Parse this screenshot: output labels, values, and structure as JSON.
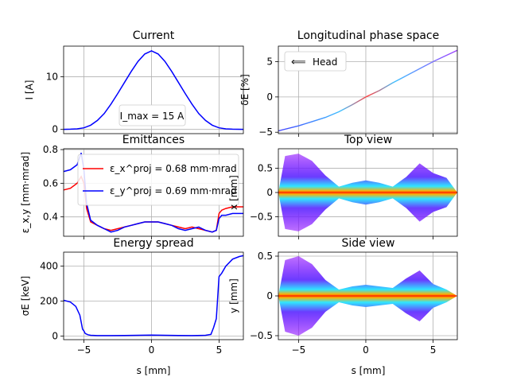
{
  "colors": {
    "current": "#0000ff",
    "ex": "#ff0000",
    "ey": "#0000ff",
    "espread": "#0000ff",
    "grid": "#b0b0b0"
  },
  "chart_data": [
    {
      "id": "current",
      "type": "line",
      "title": "Current",
      "xlabel": "",
      "ylabel": "I [A]",
      "xlim": [
        -6.5,
        6.8
      ],
      "ylim": [
        -0.8,
        15.8
      ],
      "yticks": [
        0,
        10
      ],
      "xticks": [
        -5,
        0,
        5
      ],
      "grid": true,
      "annotation": "I_max = 15 A",
      "series": [
        {
          "x": [
            -6.5,
            -6,
            -5.5,
            -5,
            -4.5,
            -4,
            -3.5,
            -3,
            -2.5,
            -2,
            -1.5,
            -1,
            -0.5,
            0,
            0.5,
            1,
            1.5,
            2,
            2.5,
            3,
            3.5,
            4,
            4.5,
            5,
            5.5,
            6,
            6.8
          ],
          "y": [
            0.02,
            0.05,
            0.1,
            0.3,
            0.8,
            1.7,
            3.0,
            4.8,
            6.8,
            8.9,
            11.0,
            12.9,
            14.3,
            14.9,
            14.3,
            12.9,
            11.0,
            8.9,
            6.8,
            4.8,
            3.0,
            1.7,
            0.8,
            0.3,
            0.1,
            0.05,
            0.02
          ]
        }
      ]
    },
    {
      "id": "lps",
      "type": "scatter",
      "title": "Longitudinal phase space",
      "xlabel": "",
      "ylabel": "δE [%]",
      "xlim": [
        -6.5,
        6.8
      ],
      "ylim": [
        -5.2,
        7.2
      ],
      "yticks": [
        -5,
        0,
        5
      ],
      "xticks": [
        -5,
        0,
        5
      ],
      "grid": true,
      "legend": "Head",
      "series": [
        {
          "x": [
            -6.5,
            -5,
            -4,
            -3,
            -2,
            -1,
            0,
            1,
            2,
            3,
            4,
            5,
            6,
            6.8
          ],
          "y": [
            -4.8,
            -4.1,
            -3.5,
            -2.9,
            -2.1,
            -1.1,
            0,
            0.9,
            2.0,
            3.0,
            4.0,
            5.0,
            5.9,
            6.6
          ]
        }
      ]
    },
    {
      "id": "emittances",
      "type": "line",
      "title": "Emittances",
      "xlabel": "",
      "ylabel": "ε_x,y [mm·mrad]",
      "xlim": [
        -6.5,
        6.8
      ],
      "ylim": [
        0.285,
        0.805
      ],
      "yticks": [
        0.4,
        0.6,
        0.8
      ],
      "xticks": [
        -5,
        0,
        5
      ],
      "grid": true,
      "legend_position": "upper-left",
      "series": [
        {
          "name": "ε_x^proj = 0.68 mm·mrad",
          "x": [
            -6.5,
            -6,
            -5.5,
            -5.2,
            -5,
            -4.8,
            -4.5,
            -4,
            -3.5,
            -3,
            -2.5,
            -2,
            -1.5,
            -1,
            -0.5,
            0,
            0.5,
            1,
            1.5,
            2,
            2.5,
            3,
            3.5,
            4,
            4.5,
            4.8,
            5,
            5.2,
            5.5,
            6,
            6.8
          ],
          "y": [
            0.56,
            0.57,
            0.6,
            0.64,
            0.6,
            0.45,
            0.37,
            0.35,
            0.33,
            0.32,
            0.33,
            0.34,
            0.35,
            0.36,
            0.37,
            0.37,
            0.37,
            0.36,
            0.35,
            0.34,
            0.33,
            0.34,
            0.33,
            0.32,
            0.31,
            0.32,
            0.42,
            0.44,
            0.45,
            0.46,
            0.46
          ]
        },
        {
          "name": "ε_y^proj = 0.69 mm·mrad",
          "x": [
            -6.5,
            -6,
            -5.5,
            -5.2,
            -5,
            -4.8,
            -4.5,
            -4,
            -3.5,
            -3,
            -2.5,
            -2,
            -1.5,
            -1,
            -0.5,
            0,
            0.5,
            1,
            1.5,
            2,
            2.5,
            3,
            3.5,
            4,
            4.5,
            4.8,
            5,
            5.2,
            5.5,
            6,
            6.8
          ],
          "y": [
            0.67,
            0.68,
            0.71,
            0.78,
            0.68,
            0.48,
            0.38,
            0.35,
            0.33,
            0.31,
            0.32,
            0.34,
            0.35,
            0.36,
            0.37,
            0.37,
            0.37,
            0.36,
            0.35,
            0.33,
            0.32,
            0.33,
            0.34,
            0.32,
            0.31,
            0.32,
            0.39,
            0.41,
            0.41,
            0.42,
            0.42
          ]
        }
      ]
    },
    {
      "id": "topview",
      "type": "scatter",
      "title": "Top view",
      "xlabel": "",
      "ylabel": "x [mm]",
      "xlim": [
        -6.5,
        6.8
      ],
      "ylim": [
        -0.9,
        0.9
      ],
      "yticks": [
        -0.5,
        0,
        0.5
      ],
      "xticks": [
        -5,
        0,
        5
      ],
      "grid": true,
      "series": [
        {
          "x": [
            -6,
            -5,
            -4,
            -3,
            -2,
            -1,
            0,
            1,
            2,
            3,
            4,
            5,
            6
          ],
          "y": [
            0.75,
            0.8,
            0.65,
            0.35,
            0.12,
            0.2,
            0.25,
            0.2,
            0.12,
            0.32,
            0.6,
            0.4,
            0.3
          ]
        }
      ]
    },
    {
      "id": "espread",
      "type": "line",
      "title": "Energy spread",
      "xlabel": "s [mm]",
      "ylabel": "σE [keV]",
      "xlim": [
        -6.5,
        6.8
      ],
      "ylim": [
        -20,
        480
      ],
      "yticks": [
        0,
        200,
        400
      ],
      "xticks": [
        -5,
        0,
        5
      ],
      "xticklabels": [
        "−5",
        "0",
        "5"
      ],
      "grid": true,
      "series": [
        {
          "x": [
            -6.5,
            -6,
            -5.6,
            -5.3,
            -5.1,
            -5,
            -4.9,
            -4.7,
            -4.5,
            -4,
            -3,
            -2,
            -1,
            0,
            1,
            2,
            3,
            4,
            4.4,
            4.6,
            4.8,
            5,
            5.2,
            5.5,
            6,
            6.5,
            6.8
          ],
          "y": [
            205,
            195,
            170,
            120,
            40,
            30,
            15,
            8,
            5,
            3,
            3,
            4,
            5,
            6,
            5,
            4,
            3,
            5,
            10,
            50,
            100,
            340,
            360,
            400,
            440,
            455,
            460
          ]
        }
      ]
    },
    {
      "id": "sideview",
      "type": "scatter",
      "title": "Side view",
      "xlabel": "s [mm]",
      "ylabel": "y [mm]",
      "xlim": [
        -6.5,
        6.8
      ],
      "ylim": [
        -0.55,
        0.55
      ],
      "yticks": [
        -0.5,
        0,
        0.5
      ],
      "xticks": [
        -5,
        0,
        5
      ],
      "xticklabels": [
        "−5",
        "0",
        "5"
      ],
      "grid": true,
      "series": [
        {
          "x": [
            -6,
            -5,
            -4,
            -3,
            -2,
            -1,
            0,
            1,
            2,
            3,
            4,
            5,
            6
          ],
          "y": [
            0.45,
            0.5,
            0.4,
            0.2,
            0.08,
            0.12,
            0.14,
            0.12,
            0.1,
            0.22,
            0.32,
            0.15,
            0.08
          ]
        }
      ]
    }
  ]
}
